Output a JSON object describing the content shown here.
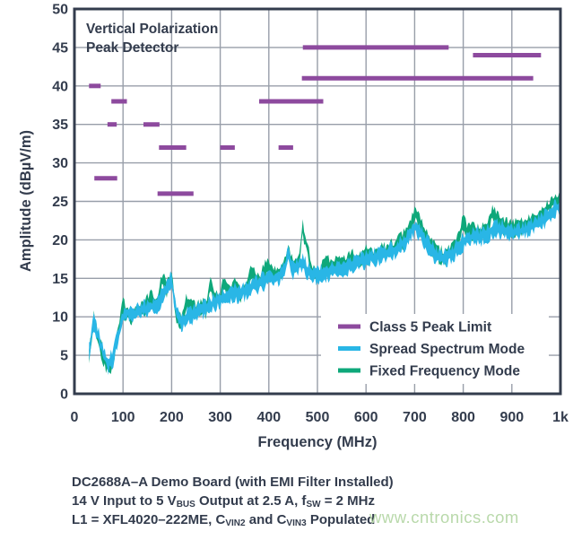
{
  "page": {
    "background": "#ffffff"
  },
  "colors": {
    "text_navy": "#333c4d",
    "grid_gray": "#989ea9",
    "limit_purple": "#8d4a9e",
    "spread_cyan": "#29b6e6",
    "fixed_green": "#0ea87a",
    "watermark_green": "#b9d9ab"
  },
  "figure": {
    "annotation": [
      "Vertical Polarization",
      "Peak Detector"
    ],
    "x_axis": {
      "title": "Frequency (MHz)",
      "ticks": [
        "0",
        "100",
        "200",
        "300",
        "400",
        "500",
        "600",
        "700",
        "800",
        "900",
        "1k"
      ]
    },
    "y_axis": {
      "title": "Amplitude (dBµV/m)",
      "ticks": [
        "0",
        "5",
        "10",
        "15",
        "20",
        "25",
        "30",
        "35",
        "40",
        "45",
        "50"
      ]
    },
    "legend": [
      {
        "label": "Class 5 Peak Limit",
        "color": "#8d4a9e"
      },
      {
        "label": "Spread Spectrum Mode",
        "color": "#29b6e6"
      },
      {
        "label": "Fixed Frequency Mode",
        "color": "#0ea87a"
      }
    ]
  },
  "chart_data": {
    "type": "line",
    "title": "Vertical Polarization Peak Detector",
    "xlabel": "Frequency (MHz)",
    "ylabel": "Amplitude (dBµV/m)",
    "xlim": [
      0,
      1000
    ],
    "ylim": [
      0,
      50
    ],
    "x_tick_step": 100,
    "y_tick_step": 5,
    "grid": true,
    "legend_position": "lower right",
    "limit": {
      "name": "Class 5 Peak Limit",
      "color": "#8d4a9e",
      "segments_mhz_db": [
        [
          30,
          54,
          40
        ],
        [
          41,
          88,
          28
        ],
        [
          68,
          87,
          35
        ],
        [
          76,
          108,
          38
        ],
        [
          142,
          175,
          35
        ],
        [
          171,
          245,
          26
        ],
        [
          174,
          230,
          32
        ],
        [
          300,
          330,
          32
        ],
        [
          380,
          512,
          38
        ],
        [
          420,
          450,
          32
        ],
        [
          468,
          944,
          41
        ],
        [
          470,
          770,
          45
        ],
        [
          820,
          960,
          44
        ]
      ]
    },
    "series": [
      {
        "name": "Spread Spectrum Mode",
        "color": "#29b6e6",
        "x_start": 30,
        "x_step": 10,
        "band_halfwidth_db": 0.85,
        "values": [
          5.5,
          9.2,
          7.3,
          5.2,
          3.8,
          4.8,
          7.6,
          10.0,
          10.6,
          10.3,
          10.6,
          10.9,
          11.0,
          11.3,
          11.7,
          12.6,
          13.6,
          14.8,
          10.2,
          9.4,
          9.9,
          10.2,
          10.5,
          10.8,
          11.1,
          11.5,
          11.9,
          12.2,
          12.5,
          12.8,
          13.2,
          13.0,
          13.3,
          13.7,
          14.0,
          14.3,
          14.6,
          14.8,
          15.0,
          15.3,
          15.8,
          18.0,
          16.0,
          16.5,
          17.3,
          15.9,
          15.5,
          15.4,
          15.6,
          15.8,
          16.0,
          16.1,
          16.3,
          16.5,
          16.8,
          17.0,
          17.2,
          17.4,
          17.6,
          17.8,
          18.0,
          18.2,
          18.5,
          18.8,
          19.2,
          19.8,
          20.8,
          21.6,
          21.0,
          19.9,
          19.0,
          18.3,
          17.8,
          17.5,
          17.8,
          18.3,
          19.0,
          19.7,
          20.1,
          20.5,
          20.4,
          20.5,
          20.8,
          21.2,
          21.5,
          21.4,
          21.1,
          21.0,
          21.1,
          21.2,
          21.4,
          21.7,
          22.0,
          22.3,
          22.9,
          23.6,
          24.2,
          24.4
        ]
      },
      {
        "name": "Fixed Frequency Mode",
        "color": "#0ea87a",
        "x_start": 30,
        "x_step": 10,
        "band_halfwidth_db": 0.8,
        "values": [
          4.8,
          9.6,
          7.0,
          4.8,
          3.3,
          4.5,
          8.2,
          11.2,
          10.3,
          10.0,
          10.9,
          10.7,
          11.9,
          12.3,
          11.5,
          14.8,
          13.8,
          15.3,
          10.0,
          9.2,
          12.0,
          11.5,
          10.8,
          11.2,
          11.0,
          14.0,
          12.0,
          12.6,
          14.6,
          12.9,
          14.4,
          13.1,
          13.5,
          15.2,
          15.6,
          14.5,
          16.0,
          16.4,
          15.2,
          15.5,
          16.2,
          18.4,
          16.4,
          16.8,
          21.5,
          18.5,
          15.7,
          15.6,
          16.0,
          17.2,
          16.1,
          17.4,
          16.5,
          16.9,
          17.8,
          17.2,
          17.4,
          18.2,
          17.8,
          18.0,
          18.7,
          18.4,
          19.0,
          19.0,
          19.6,
          20.3,
          21.6,
          23.4,
          22.4,
          20.6,
          19.5,
          18.7,
          18.2,
          17.9,
          18.3,
          19.0,
          19.8,
          22.2,
          20.8,
          21.0,
          20.8,
          21.0,
          21.4,
          23.9,
          22.8,
          21.9,
          21.6,
          21.4,
          21.7,
          21.7,
          21.9,
          22.3,
          22.9,
          23.1,
          23.8,
          24.6,
          25.2,
          25.5
        ]
      }
    ],
    "noise_db": 0.6,
    "noise_seed": 42
  },
  "caption": {
    "lines": [
      [
        {
          "t": "DC2688A–A Demo Board (with EMI Filter Installed)"
        }
      ],
      [
        {
          "t": "14 V Input to 5 V"
        },
        {
          "t": "BUS",
          "sub": true
        },
        {
          "t": " Output at 2.5 A, f"
        },
        {
          "t": "SW",
          "sub": true
        },
        {
          "t": " = 2 MHz"
        }
      ],
      [
        {
          "t": "L1 = XFL4020–222ME, C"
        },
        {
          "t": "VIN2",
          "sub": true
        },
        {
          "t": " and C"
        },
        {
          "t": "VIN3",
          "sub": true
        },
        {
          "t": " Populated"
        }
      ]
    ]
  },
  "watermark": {
    "text": "www.cntronics.com",
    "color": "#b9d9ab"
  }
}
